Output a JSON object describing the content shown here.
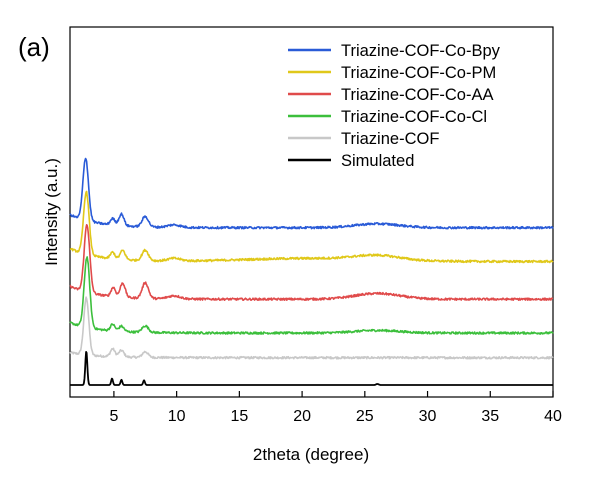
{
  "panel_label": "(a)",
  "chart_data": {
    "type": "line",
    "title": "",
    "xlabel": "2theta (degree)",
    "ylabel": "Intensity (a.u.)",
    "xlim": [
      1.5,
      40
    ],
    "x_ticks": [
      5,
      10,
      15,
      20,
      25,
      30,
      35,
      40
    ],
    "y_ticks": [],
    "grid": false,
    "legend_position": "top-right",
    "series": [
      {
        "name": "Triazine-COF-Co-Bpy",
        "color": "#2a5bd7",
        "offset": 6.05,
        "baseline": 0.5,
        "peaks": [
          [
            2.75,
            2.4,
            0.22
          ],
          [
            4.9,
            0.25,
            0.18
          ],
          [
            5.6,
            0.45,
            0.2
          ],
          [
            7.5,
            0.4,
            0.25
          ],
          [
            9.8,
            0.1,
            0.5
          ],
          [
            26.0,
            0.15,
            1.8
          ]
        ]
      },
      {
        "name": "Triazine-COF-Co-PM",
        "color": "#e0c81a",
        "offset": 4.75,
        "baseline": 0.5,
        "peaks": [
          [
            2.8,
            2.4,
            0.22
          ],
          [
            4.9,
            0.25,
            0.18
          ],
          [
            5.7,
            0.35,
            0.2
          ],
          [
            7.5,
            0.4,
            0.25
          ],
          [
            9.8,
            0.1,
            0.5
          ],
          [
            20.5,
            0.12,
            5.0
          ],
          [
            26.0,
            0.18,
            1.8
          ]
        ]
      },
      {
        "name": "Triazine-COF-Co-AA",
        "color": "#e04b4b",
        "offset": 3.3,
        "baseline": 0.5,
        "peaks": [
          [
            2.85,
            2.6,
            0.22
          ],
          [
            4.95,
            0.35,
            0.18
          ],
          [
            5.7,
            0.55,
            0.2
          ],
          [
            7.5,
            0.6,
            0.25
          ],
          [
            9.8,
            0.12,
            0.5
          ],
          [
            26.0,
            0.22,
            1.8
          ]
        ]
      },
      {
        "name": "Triazine-COF-Co-Cl",
        "color": "#3cbf3c",
        "offset": 2.0,
        "baseline": 0.4,
        "peaks": [
          [
            2.85,
            2.7,
            0.22
          ],
          [
            4.9,
            0.25,
            0.18
          ],
          [
            5.6,
            0.2,
            0.2
          ],
          [
            7.5,
            0.25,
            0.25
          ],
          [
            26.0,
            0.1,
            1.8
          ]
        ]
      },
      {
        "name": "Triazine-COF",
        "color": "#c8c8c8",
        "offset": 1.05,
        "baseline": 0.2,
        "peaks": [
          [
            2.8,
            2.2,
            0.2
          ],
          [
            4.9,
            0.3,
            0.18
          ],
          [
            5.6,
            0.25,
            0.2
          ],
          [
            7.5,
            0.22,
            0.22
          ]
        ]
      },
      {
        "name": "Simulated",
        "color": "#000000",
        "offset": 0.0,
        "baseline": 0.0,
        "peaks": [
          [
            2.8,
            1.3,
            0.08
          ],
          [
            4.85,
            0.25,
            0.07
          ],
          [
            5.6,
            0.2,
            0.07
          ],
          [
            7.4,
            0.18,
            0.07
          ],
          [
            26.0,
            0.04,
            0.1
          ]
        ]
      }
    ]
  }
}
